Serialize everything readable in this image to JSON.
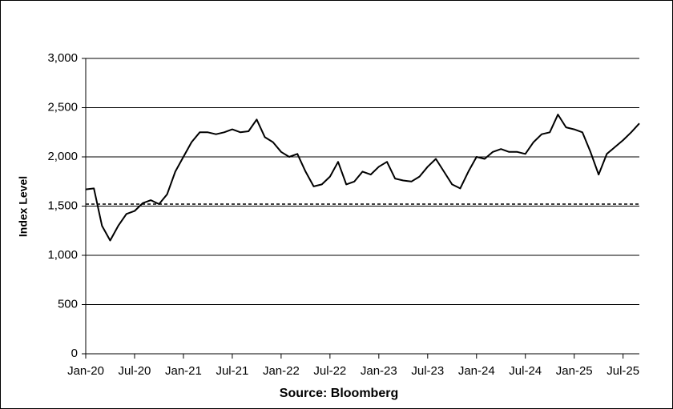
{
  "chart_data": {
    "type": "line",
    "y_label": "Index Level",
    "x_label": "Source: Bloomberg",
    "categories": [
      "Jan-20",
      null,
      null,
      null,
      null,
      null,
      "Jul-20",
      null,
      null,
      null,
      null,
      null,
      "Jan-21",
      null,
      null,
      null,
      null,
      null,
      "Jul-21",
      null,
      null,
      null,
      null,
      null,
      "Jan-22",
      null,
      null,
      null,
      null,
      null,
      "Jul-22",
      null,
      null,
      null,
      null,
      null,
      "Jan-23",
      null,
      null,
      null,
      null,
      null,
      "Jul-23",
      null,
      null,
      null,
      null,
      null,
      "Jan-24",
      null,
      null,
      null,
      null,
      null,
      "Jul-24",
      null,
      null,
      null,
      null,
      null,
      "Jan-25",
      null,
      null,
      null,
      null,
      null,
      "Jul-25",
      null,
      null
    ],
    "series": [
      {
        "color": "#000000",
        "values": [
          1670,
          1680,
          1300,
          1150,
          1300,
          1420,
          1450,
          1530,
          1560,
          1520,
          1620,
          1850,
          2000,
          2150,
          2250,
          2250,
          2230,
          2250,
          2280,
          2250,
          2260,
          2380,
          2200,
          2150,
          2050,
          2000,
          2030,
          1850,
          1700,
          1720,
          1800,
          1950,
          1720,
          1750,
          1850,
          1820,
          1900,
          1950,
          1780,
          1760,
          1750,
          1800,
          1900,
          1980,
          1850,
          1720,
          1680,
          1850,
          2000,
          1980,
          2050,
          2080,
          2050,
          2050,
          2030,
          2150,
          2230,
          2250,
          2430,
          2300,
          2280,
          2250,
          2050,
          1820,
          2030,
          2100,
          2170,
          2250,
          2340
        ]
      }
    ],
    "reference_line": 1520,
    "ylim": [
      0,
      3000
    ],
    "yticks": [
      0,
      {
        "value": 500,
        "label": "500"
      },
      {
        "value": 1000,
        "label": "1,000"
      },
      {
        "value": 1500,
        "label": "1,500"
      },
      {
        "value": 2000,
        "label": "2,000"
      },
      {
        "value": 2500,
        "label": "2,500"
      },
      {
        "value": 3000,
        "label": "3,000"
      }
    ],
    "grid": true
  }
}
